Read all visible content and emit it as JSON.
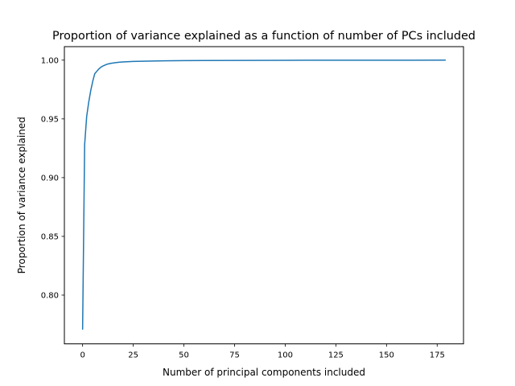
{
  "chart_data": {
    "type": "line",
    "title": "Proportion of variance explained as a function of number of PCs included",
    "xlabel": "Number of principal components included",
    "ylabel": "Proportion of variance explained",
    "xlim": [
      -9,
      188
    ],
    "ylim": [
      0.7585,
      1.0115
    ],
    "xticks": [
      0,
      25,
      50,
      75,
      100,
      125,
      150,
      175
    ],
    "xtick_labels": [
      "0",
      "25",
      "50",
      "75",
      "100",
      "125",
      "150",
      "175"
    ],
    "yticks": [
      0.8,
      0.85,
      0.9,
      0.95,
      1.0
    ],
    "ytick_labels": [
      "0.80",
      "0.85",
      "0.90",
      "0.95",
      "1.00"
    ],
    "grid": false,
    "series": [
      {
        "color": "#1f77b4",
        "x": [
          0,
          1,
          2,
          3,
          4,
          5,
          6,
          7,
          8,
          9,
          10,
          12,
          14,
          16,
          18,
          20,
          25,
          30,
          40,
          50,
          60,
          80,
          100,
          120,
          150,
          179
        ],
        "y": [
          0.771,
          0.928,
          0.952,
          0.964,
          0.974,
          0.982,
          0.9885,
          0.9905,
          0.9925,
          0.994,
          0.995,
          0.9965,
          0.9973,
          0.9978,
          0.9982,
          0.9985,
          0.9989,
          0.9991,
          0.9994,
          0.9996,
          0.9997,
          0.9998,
          0.9999,
          0.99995,
          0.99998,
          1.0
        ]
      }
    ]
  }
}
